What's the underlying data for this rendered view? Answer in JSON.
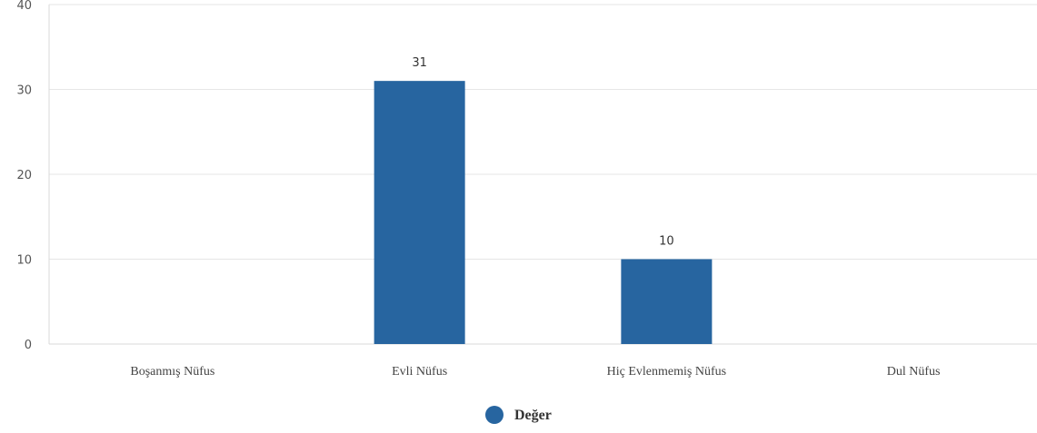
{
  "chart_data": {
    "type": "bar",
    "categories": [
      "Boşanmış Nüfus",
      "Evli Nüfus",
      "Hiç Evlenmemiş Nüfus",
      "Dul Nüfus"
    ],
    "series": [
      {
        "name": "Değer",
        "values": [
          0,
          31,
          10,
          0
        ],
        "color": "#2765a0"
      }
    ],
    "data_labels": [
      "",
      "31",
      "10",
      ""
    ],
    "yticks": [
      0,
      10,
      20,
      30,
      40
    ],
    "ylim": [
      0,
      40
    ],
    "grid": true,
    "legend_position": "bottom-center"
  }
}
